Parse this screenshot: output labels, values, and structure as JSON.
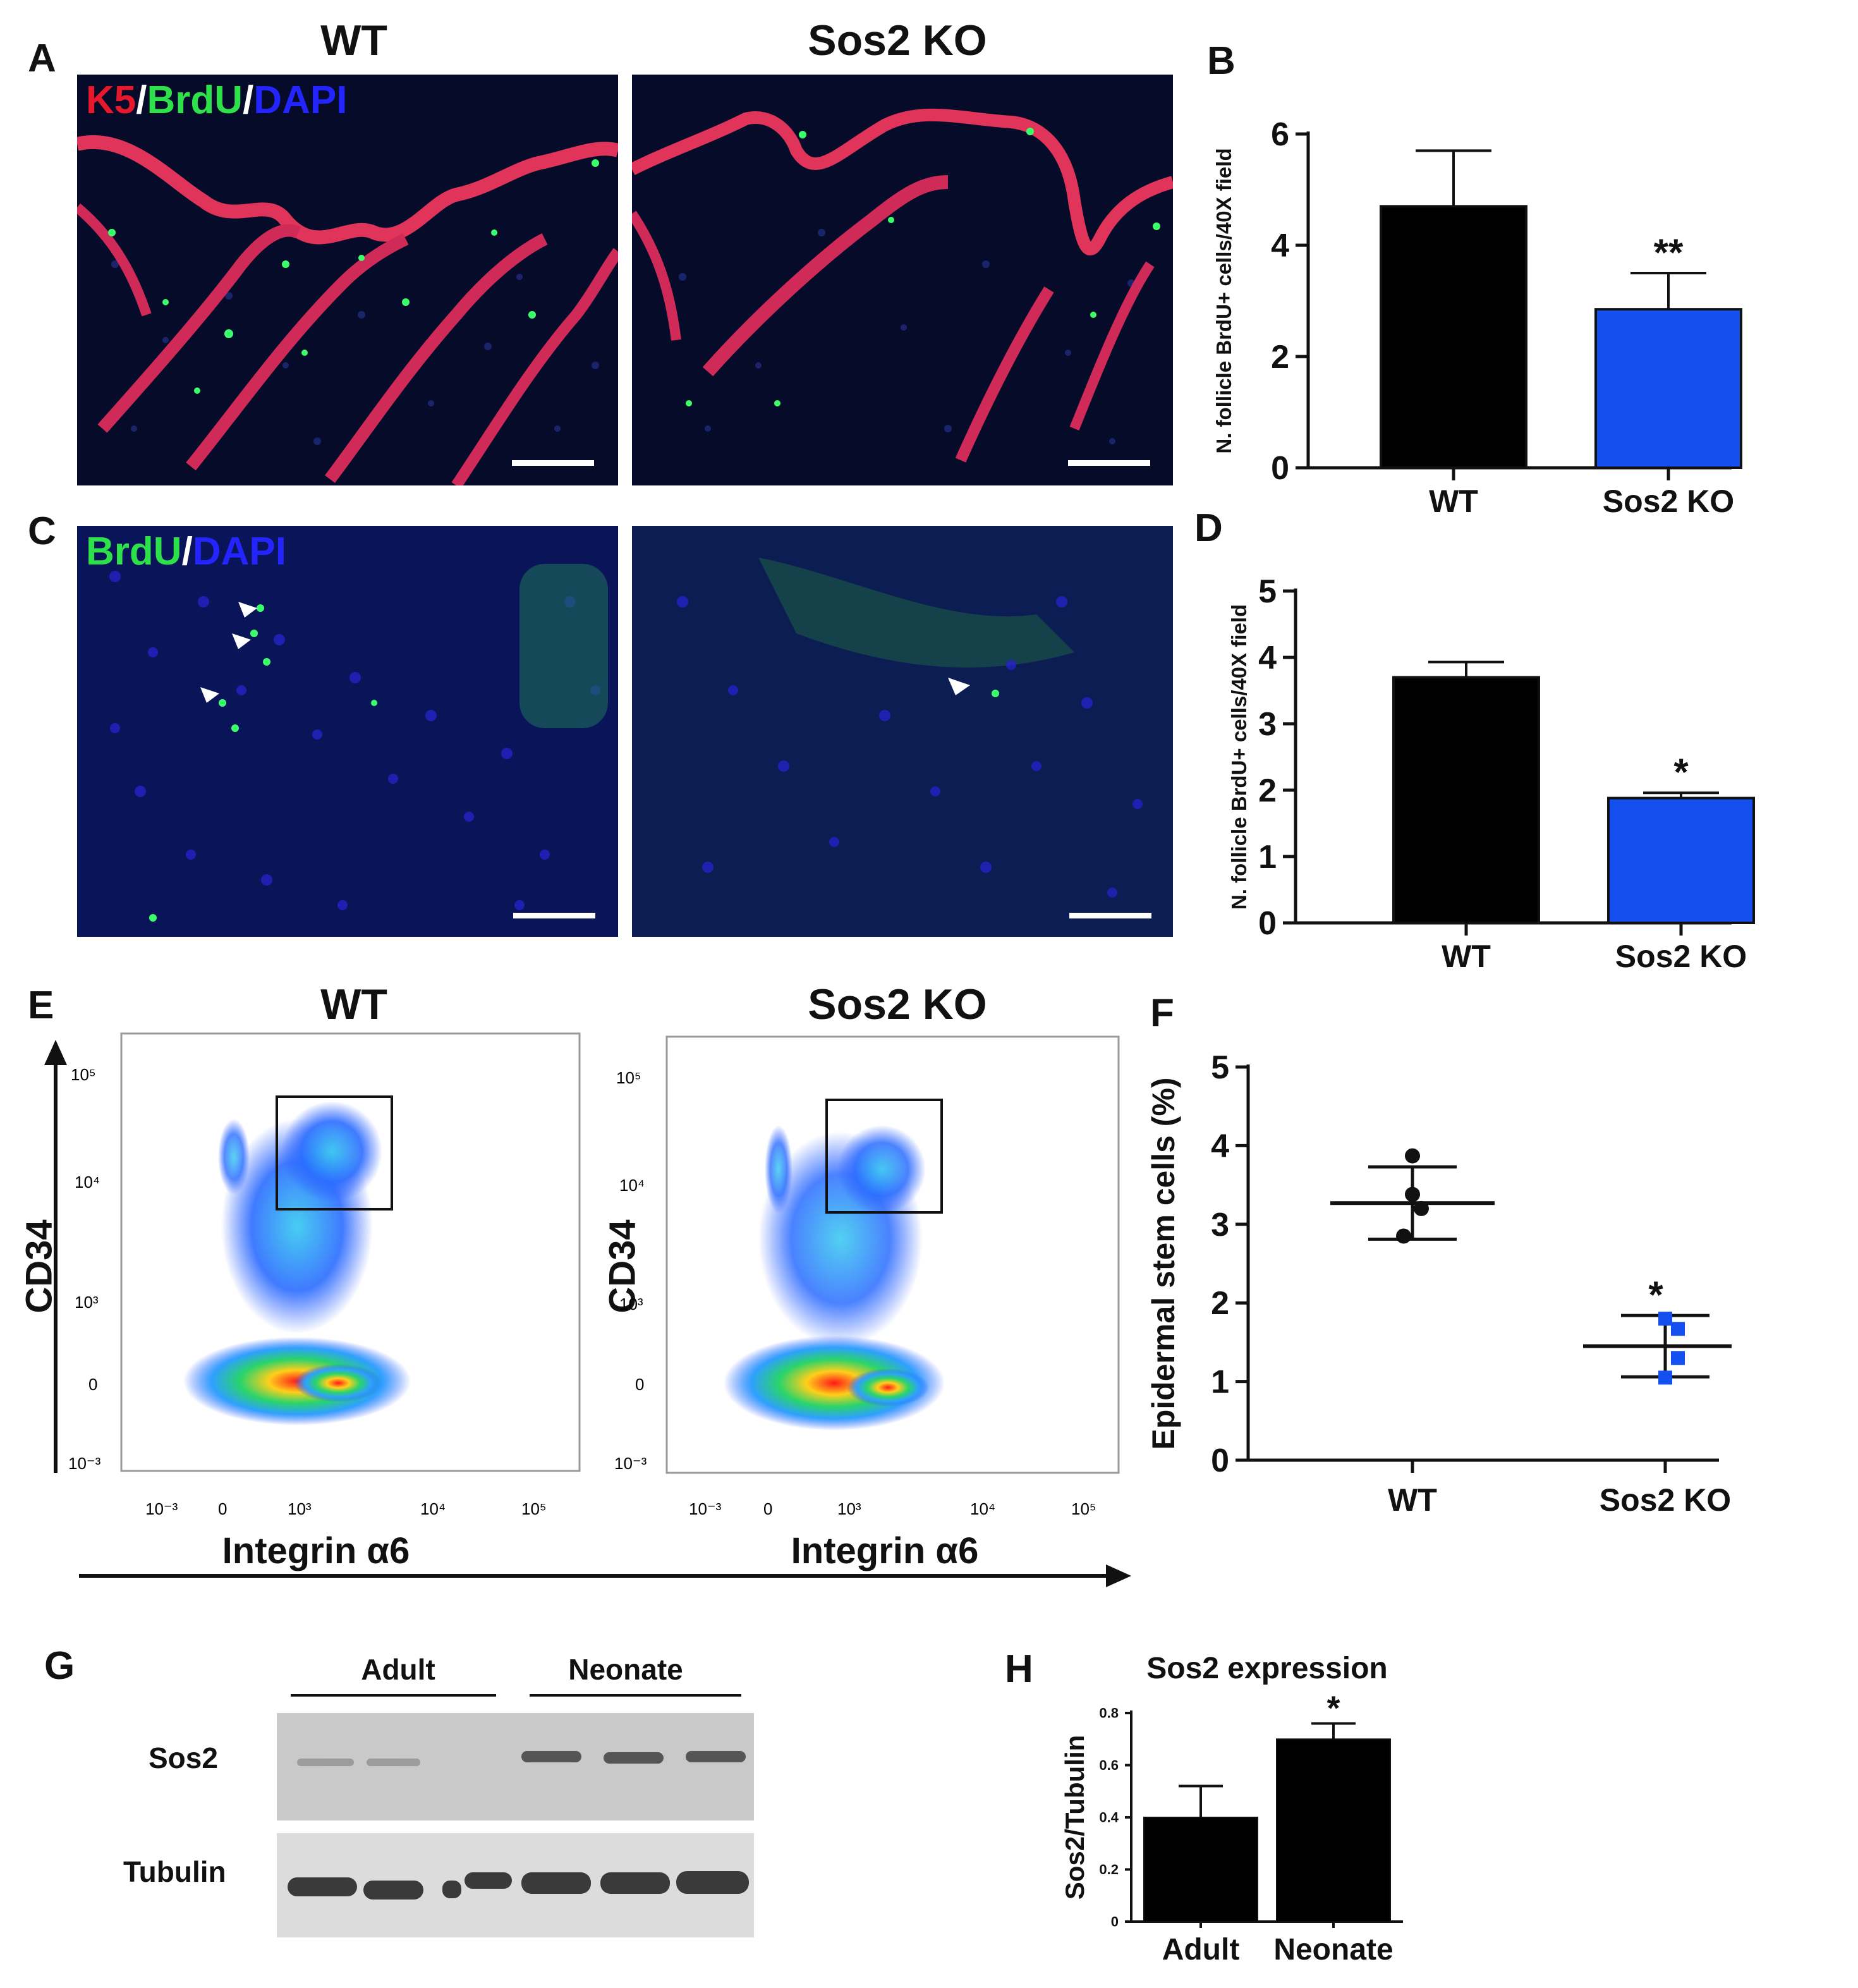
{
  "panels": {
    "A": "A",
    "B": "B",
    "C": "C",
    "D": "D",
    "E": "E",
    "F": "F",
    "G": "G",
    "H": "H"
  },
  "conditions": {
    "wt": "WT",
    "ko": "Sos2 KO"
  },
  "stains": {
    "A": {
      "k5": "K5",
      "sep1": "/",
      "brdu": "BrdU",
      "sep2": "/",
      "dapi": "DAPI"
    },
    "C": {
      "brdu": "BrdU",
      "sep": "/",
      "dapi": "DAPI"
    }
  },
  "flow": {
    "ylabel": "CD34",
    "xlabel": "Integrin α6",
    "yticks": [
      "10⁵",
      "10⁴",
      "10³",
      "0",
      "10⁻³"
    ],
    "xticks": [
      "10⁻³",
      "0",
      "10³",
      "10⁴",
      "10⁵"
    ]
  },
  "blot": {
    "groups": [
      "Adult",
      "Neonate"
    ],
    "rows": [
      "Sos2",
      "Tubulin"
    ]
  },
  "colors": {
    "wt_bar": "#000000",
    "ko_bar": "#1450f0",
    "red": "#e8182c",
    "green": "#2ee04a",
    "blue": "#2424ff"
  },
  "chart_data": [
    {
      "panel": "B",
      "type": "bar",
      "categories": [
        "WT",
        "Sos2 KO"
      ],
      "values": [
        4.7,
        2.85
      ],
      "errors": [
        1.0,
        0.65
      ],
      "ylabel": "N. follicle BrdU+ cells/40X field",
      "ylim": [
        0,
        6
      ],
      "yticks": [
        "0",
        "2",
        "4",
        "6"
      ],
      "annotations": [
        {
          "category": "Sos2 KO",
          "text": "**"
        }
      ]
    },
    {
      "panel": "D",
      "type": "bar",
      "categories": [
        "WT",
        "Sos2 KO"
      ],
      "values": [
        3.7,
        1.88
      ],
      "errors": [
        0.23,
        0.08
      ],
      "ylabel": "N. follicle BrdU+ cells/40X field",
      "ylim": [
        0,
        5
      ],
      "yticks": [
        "0",
        "1",
        "2",
        "3",
        "4",
        "5"
      ],
      "annotations": [
        {
          "category": "Sos2 KO",
          "text": "*"
        }
      ]
    },
    {
      "panel": "F",
      "type": "scatter",
      "categories": [
        "WT",
        "Sos2 KO"
      ],
      "series": [
        {
          "category": "WT",
          "points": [
            3.87,
            3.38,
            3.2,
            2.85
          ],
          "mean": 3.27,
          "upper": 3.73,
          "lower": 2.81
        },
        {
          "category": "Sos2 KO",
          "points": [
            1.8,
            1.67,
            1.3,
            1.05
          ],
          "mean": 1.45,
          "upper": 1.84,
          "lower": 1.06
        }
      ],
      "ylabel": "Epidermal stem cells (%)",
      "ylim": [
        0,
        5
      ],
      "yticks": [
        "0",
        "1",
        "2",
        "3",
        "4",
        "5"
      ],
      "annotations": [
        {
          "category": "Sos2 KO",
          "text": "*"
        }
      ]
    },
    {
      "panel": "H",
      "type": "bar",
      "title": "Sos2 expression",
      "categories": [
        "Adult",
        "Neonate"
      ],
      "values": [
        0.4,
        0.7
      ],
      "errors": [
        0.12,
        0.06
      ],
      "ylabel": "Sos2/Tubulin",
      "ylim": [
        0,
        0.8
      ],
      "yticks": [
        "0",
        "0.2",
        "0.4",
        "0.6",
        "0.8"
      ],
      "annotations": [
        {
          "category": "Neonate",
          "text": "*"
        }
      ]
    }
  ]
}
